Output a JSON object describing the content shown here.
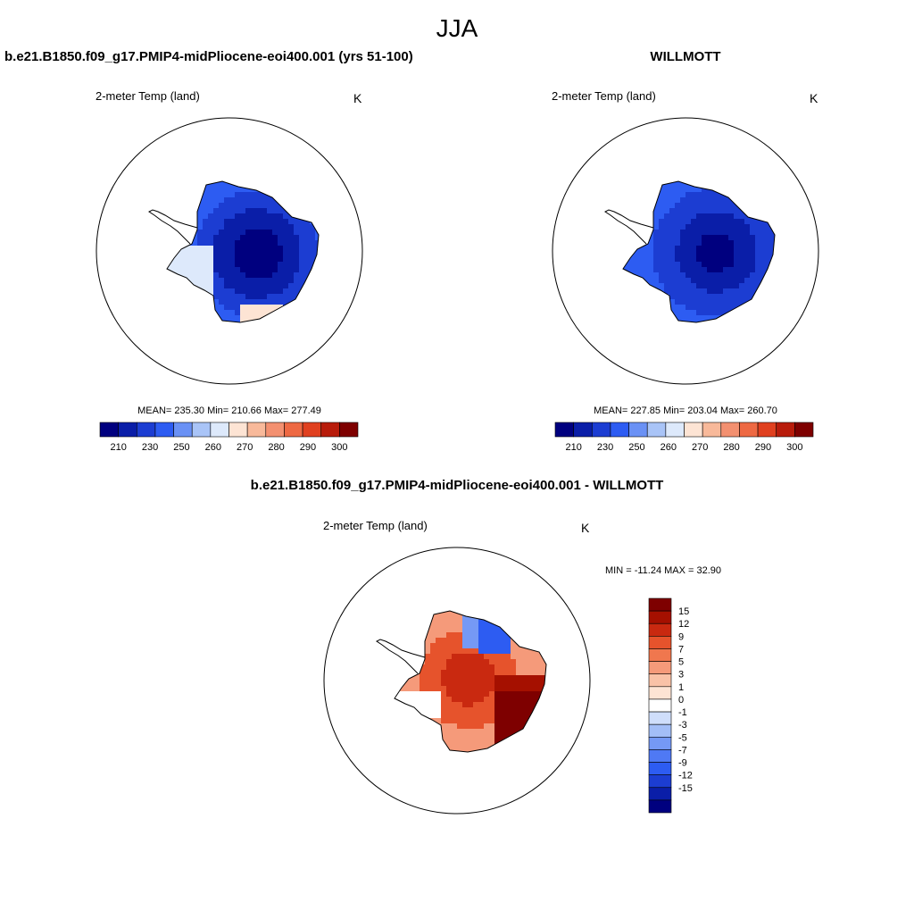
{
  "page": {
    "title": "JJA"
  },
  "colors": {
    "abs_scale": [
      "#00007f",
      "#0a1ea8",
      "#1c3dd2",
      "#2d5cf2",
      "#6a91f5",
      "#a9c4f7",
      "#dde9fb",
      "#fde4d4",
      "#f8b99a",
      "#f39070",
      "#ee6943",
      "#e0401f",
      "#b81c0b",
      "#7e0000"
    ],
    "diff_scale": [
      "#00007f",
      "#0a1ea8",
      "#1c3dd2",
      "#2d5cf2",
      "#4f79f4",
      "#7599f5",
      "#a3bef7",
      "#cfdefb",
      "#ffffff",
      "#fde4d4",
      "#f9c2a7",
      "#f59a7a",
      "#f0774e",
      "#e6532c",
      "#c92910",
      "#a51000",
      "#7e0000"
    ],
    "land_outline": "#000000"
  },
  "panels": [
    {
      "heading": "b.e21.B1850.f09_g17.PMIP4-midPliocene-eoi400.001 (yrs 51-100)",
      "left_label": "2-meter Temp (land)",
      "right_label": "K",
      "stats": "MEAN= 235.30  Min= 210.66  Max= 277.49"
    },
    {
      "heading": "WILLMOTT",
      "left_label": "2-meter Temp (land)",
      "right_label": "K",
      "stats": "MEAN= 227.85  Min= 203.04  Max= 260.70"
    },
    {
      "heading": "b.e21.B1850.f09_g17.PMIP4-midPliocene-eoi400.001 - WILLMOTT",
      "left_label": "2-meter Temp (land)",
      "right_label": "K",
      "stats": "MIN = -11.24 MAX =  32.90"
    }
  ],
  "chart_data": [
    {
      "type": "heatmap",
      "title": "b.e21.B1850.f09_g17.PMIP4-midPliocene-eoi400.001 (yrs 51-100)",
      "variable": "2-meter Temp (land)",
      "units": "K",
      "projection": "south polar stereographic",
      "mean": 235.3,
      "min": 210.66,
      "max": 277.49,
      "colorbar_ticks": [
        "210",
        "230",
        "250",
        "260",
        "270",
        "280",
        "290",
        "300"
      ]
    },
    {
      "type": "heatmap",
      "title": "WILLMOTT",
      "variable": "2-meter Temp (land)",
      "units": "K",
      "projection": "south polar stereographic",
      "mean": 227.85,
      "min": 203.04,
      "max": 260.7,
      "colorbar_ticks": [
        "210",
        "230",
        "250",
        "260",
        "270",
        "280",
        "290",
        "300"
      ]
    },
    {
      "type": "heatmap",
      "title": "b.e21.B1850.f09_g17.PMIP4-midPliocene-eoi400.001 - WILLMOTT",
      "variable": "2-meter Temp (land)",
      "units": "K",
      "projection": "south polar stereographic",
      "min": -11.24,
      "max": 32.9,
      "colorbar_ticks": [
        "15",
        "12",
        "9",
        "7",
        "5",
        "3",
        "1",
        "0",
        "-1",
        "-3",
        "-5",
        "-7",
        "-9",
        "-12",
        "-15"
      ]
    }
  ]
}
